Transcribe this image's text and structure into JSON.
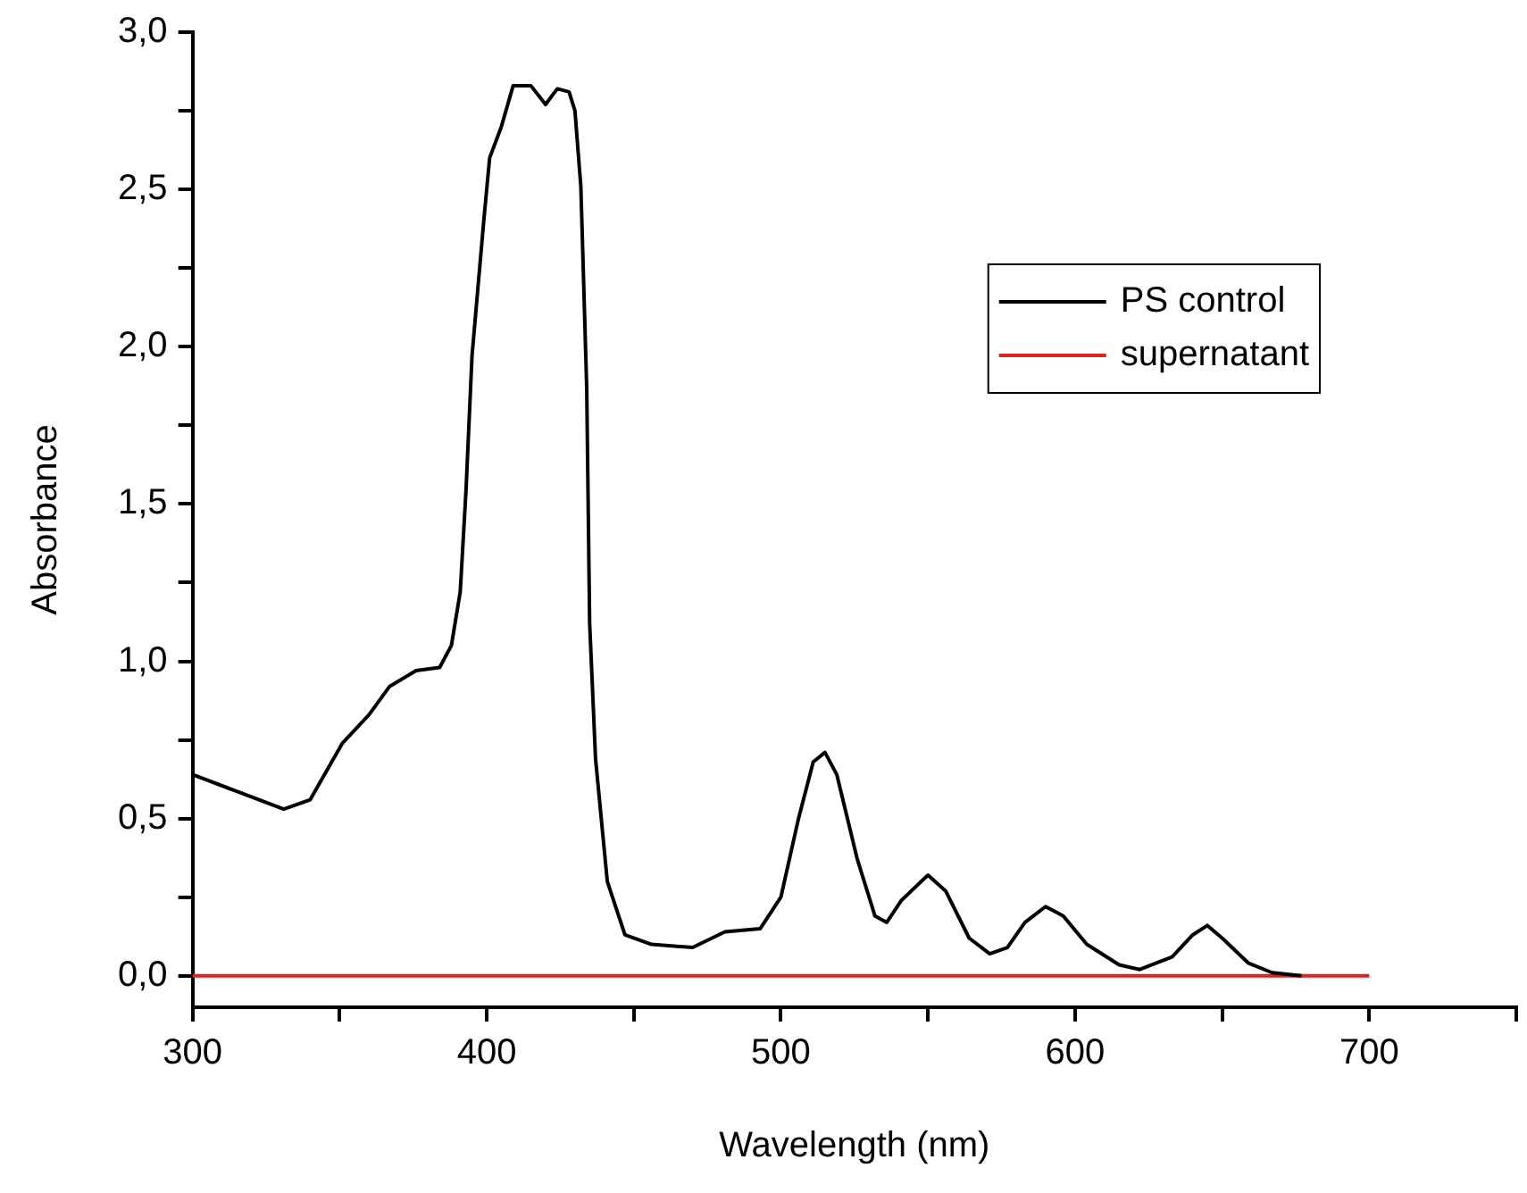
{
  "chart_data": {
    "type": "line",
    "xlabel": "Wavelength (nm)",
    "ylabel": "Absorbance",
    "xlim": [
      300,
      750
    ],
    "ylim": [
      -0.1,
      3.0
    ],
    "xticks": [
      300,
      {
        "value": 350,
        "label": null
      },
      400,
      {
        "value": 450,
        "label": null
      },
      500,
      {
        "value": 550,
        "label": null
      },
      600,
      {
        "value": 650,
        "label": null
      },
      700,
      {
        "value": 750,
        "label": null
      }
    ],
    "yticks": [
      {
        "value": 0,
        "label": "0,0"
      },
      {
        "value": 0.25,
        "label": null
      },
      {
        "value": 0.5,
        "label": "0,5"
      },
      {
        "value": 0.75,
        "label": null
      },
      {
        "value": 1,
        "label": "1,0"
      },
      {
        "value": 1.25,
        "label": null
      },
      {
        "value": 1.5,
        "label": "1,5"
      },
      {
        "value": 1.75,
        "label": null
      },
      {
        "value": 2,
        "label": "2,0"
      },
      {
        "value": 2.25,
        "label": null
      },
      {
        "value": 2.5,
        "label": "2,5"
      },
      {
        "value": 2.75,
        "label": null
      },
      {
        "value": 3,
        "label": "3,0"
      }
    ],
    "grid": false,
    "legend": "top right",
    "marker": "none",
    "line_style": "solid",
    "series": [
      {
        "name": "PS control",
        "color": "#000000",
        "x": [
          300,
          314,
          331,
          340,
          351,
          360,
          367,
          376,
          384,
          388,
          391,
          393,
          395,
          399,
          401,
          405,
          409,
          415,
          420,
          424,
          428,
          430,
          432,
          434,
          435,
          437,
          441,
          447,
          456,
          470,
          481,
          493,
          500,
          506,
          511,
          515,
          519,
          526,
          532,
          536,
          541,
          550,
          556,
          564,
          571,
          577,
          583,
          590,
          596,
          604,
          615,
          622,
          633,
          640,
          645,
          650,
          659,
          667,
          677
        ],
        "values": [
          0.64,
          0.59,
          0.53,
          0.56,
          0.74,
          0.83,
          0.92,
          0.97,
          0.98,
          1.05,
          1.22,
          1.55,
          1.97,
          2.4,
          2.6,
          2.7,
          2.83,
          2.83,
          2.77,
          2.82,
          2.81,
          2.75,
          2.51,
          1.87,
          1.12,
          0.69,
          0.3,
          0.13,
          0.1,
          0.09,
          0.14,
          0.15,
          0.25,
          0.5,
          0.68,
          0.71,
          0.64,
          0.37,
          0.19,
          0.17,
          0.24,
          0.32,
          0.27,
          0.12,
          0.07,
          0.09,
          0.17,
          0.22,
          0.19,
          0.1,
          0.035,
          0.02,
          0.06,
          0.13,
          0.16,
          0.12,
          0.04,
          0.01,
          0
        ]
      },
      {
        "name": "supernatant",
        "color": "#e0201b",
        "x": [
          300,
          700
        ],
        "values": [
          0,
          0
        ]
      }
    ]
  }
}
